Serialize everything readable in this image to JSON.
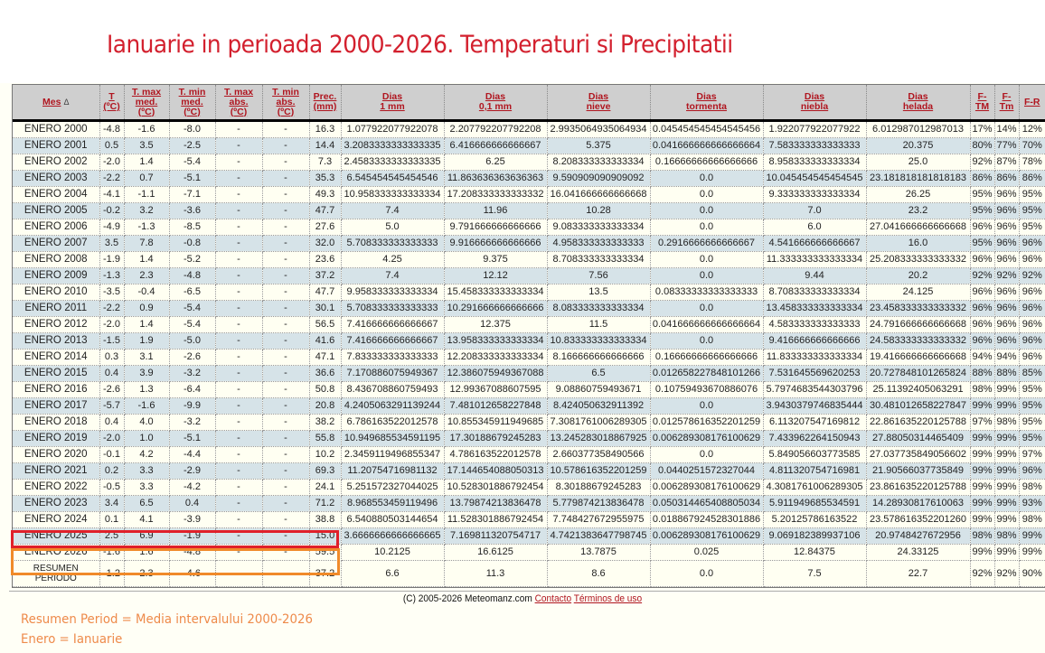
{
  "page_title": "Ianuarie in perioada 2000-2026. Temperaturi si Precipitatii",
  "table": {
    "columns": [
      {
        "key": "mes",
        "label": "Mes",
        "sort": "Δ"
      },
      {
        "key": "t",
        "label": "T (ºC)"
      },
      {
        "key": "tmaxmed",
        "label": "T. max med. (ºC)"
      },
      {
        "key": "tminmed",
        "label": "T. min med. (ºC)"
      },
      {
        "key": "tmaxabs",
        "label": "T. max abs. (ºC)"
      },
      {
        "key": "tminabs",
        "label": "T. min abs. (ºC)"
      },
      {
        "key": "prec",
        "label": "Prec. (mm)"
      },
      {
        "key": "d1mm",
        "label": "Dias 1 mm"
      },
      {
        "key": "d01mm",
        "label": "Dias 0,1 mm"
      },
      {
        "key": "dnieve",
        "label": "Dias nieve"
      },
      {
        "key": "dtormenta",
        "label": "Dias tormenta"
      },
      {
        "key": "dniebla",
        "label": "Dias niebla"
      },
      {
        "key": "dhelada",
        "label": "Dias helada"
      },
      {
        "key": "ftm",
        "label": "F-TM"
      },
      {
        "key": "ftmin",
        "label": "F-Tm"
      },
      {
        "key": "fr",
        "label": "F-R"
      }
    ],
    "header_lines": {
      "mes": [
        "Mes"
      ],
      "t": [
        "T",
        "(ºC)"
      ],
      "tmaxmed": [
        "T. max",
        "med.",
        "(ºC)"
      ],
      "tminmed": [
        "T. min",
        "med.",
        "(ºC)"
      ],
      "tmaxabs": [
        "T. max",
        "abs.",
        "(ºC)"
      ],
      "tminabs": [
        "T. min",
        "abs.",
        "(ºC)"
      ],
      "prec": [
        "Prec.",
        "(mm)"
      ],
      "d1mm": [
        "Dias",
        "1 mm"
      ],
      "d01mm": [
        "Dias",
        "0,1 mm"
      ],
      "dnieve": [
        "Dias",
        "nieve"
      ],
      "dtormenta": [
        "Dias",
        "tormenta"
      ],
      "dniebla": [
        "Dias",
        "niebla"
      ],
      "dhelada": [
        "Dias",
        "helada"
      ],
      "ftm": [
        "F-",
        "TM"
      ],
      "ftmin": [
        "F-",
        "Tm"
      ],
      "fr": [
        "F-R"
      ]
    },
    "rows": [
      [
        "ENERO 2000",
        "-4.8",
        "-1.6",
        "-8.0",
        "-",
        "-",
        "16.3",
        "1.077922077922078",
        "2.207792207792208",
        "2.9935064935064934",
        "0.045454545454545456",
        "1.922077922077922",
        "6.012987012987013",
        "17%",
        "14%",
        "12%"
      ],
      [
        "ENERO 2001",
        "0.5",
        "3.5",
        "-2.5",
        "-",
        "-",
        "14.4",
        "3.2083333333333335",
        "6.416666666666667",
        "5.375",
        "0.041666666666666664",
        "7.583333333333333",
        "20.375",
        "80%",
        "77%",
        "70%"
      ],
      [
        "ENERO 2002",
        "-2.0",
        "1.4",
        "-5.4",
        "-",
        "-",
        "7.3",
        "2.4583333333333335",
        "6.25",
        "8.208333333333334",
        "0.16666666666666666",
        "8.958333333333334",
        "25.0",
        "92%",
        "87%",
        "78%"
      ],
      [
        "ENERO 2003",
        "-2.2",
        "0.7",
        "-5.1",
        "-",
        "-",
        "35.3",
        "6.545454545454546",
        "11.863636363636363",
        "9.590909090909092",
        "0.0",
        "10.045454545454545",
        "23.181818181818183",
        "86%",
        "86%",
        "86%"
      ],
      [
        "ENERO 2004",
        "-4.1",
        "-1.1",
        "-7.1",
        "-",
        "-",
        "49.3",
        "10.958333333333334",
        "17.208333333333332",
        "16.041666666666668",
        "0.0",
        "9.333333333333334",
        "26.25",
        "95%",
        "96%",
        "95%"
      ],
      [
        "ENERO 2005",
        "-0.2",
        "3.2",
        "-3.6",
        "-",
        "-",
        "47.7",
        "7.4",
        "11.96",
        "10.28",
        "0.0",
        "7.0",
        "23.2",
        "95%",
        "96%",
        "95%"
      ],
      [
        "ENERO 2006",
        "-4.9",
        "-1.3",
        "-8.5",
        "-",
        "-",
        "27.6",
        "5.0",
        "9.791666666666666",
        "9.083333333333334",
        "0.0",
        "6.0",
        "27.041666666666668",
        "96%",
        "96%",
        "95%"
      ],
      [
        "ENERO 2007",
        "3.5",
        "7.8",
        "-0.8",
        "-",
        "-",
        "32.0",
        "5.708333333333333",
        "9.916666666666666",
        "4.958333333333333",
        "0.2916666666666667",
        "4.541666666666667",
        "16.0",
        "95%",
        "96%",
        "96%"
      ],
      [
        "ENERO 2008",
        "-1.9",
        "1.4",
        "-5.2",
        "-",
        "-",
        "23.6",
        "4.25",
        "9.375",
        "8.708333333333334",
        "0.0",
        "11.333333333333334",
        "25.208333333333332",
        "96%",
        "96%",
        "96%"
      ],
      [
        "ENERO 2009",
        "-1.3",
        "2.3",
        "-4.8",
        "-",
        "-",
        "37.2",
        "7.4",
        "12.12",
        "7.56",
        "0.0",
        "9.44",
        "20.2",
        "92%",
        "92%",
        "92%"
      ],
      [
        "ENERO 2010",
        "-3.5",
        "-0.4",
        "-6.5",
        "-",
        "-",
        "47.7",
        "9.958333333333334",
        "15.458333333333334",
        "13.5",
        "0.08333333333333333",
        "8.708333333333334",
        "24.125",
        "96%",
        "96%",
        "96%"
      ],
      [
        "ENERO 2011",
        "-2.2",
        "0.9",
        "-5.4",
        "-",
        "-",
        "30.1",
        "5.708333333333333",
        "10.291666666666666",
        "8.083333333333334",
        "0.0",
        "13.458333333333334",
        "23.458333333333332",
        "96%",
        "96%",
        "96%"
      ],
      [
        "ENERO 2012",
        "-2.0",
        "1.4",
        "-5.4",
        "-",
        "-",
        "56.5",
        "7.416666666666667",
        "12.375",
        "11.5",
        "0.041666666666666664",
        "4.583333333333333",
        "24.791666666666668",
        "96%",
        "96%",
        "96%"
      ],
      [
        "ENERO 2013",
        "-1.5",
        "1.9",
        "-5.0",
        "-",
        "-",
        "41.6",
        "7.416666666666667",
        "13.958333333333334",
        "10.833333333333334",
        "0.0",
        "9.416666666666666",
        "24.583333333333332",
        "96%",
        "96%",
        "96%"
      ],
      [
        "ENERO 2014",
        "0.3",
        "3.1",
        "-2.6",
        "-",
        "-",
        "47.1",
        "7.833333333333333",
        "12.208333333333334",
        "8.166666666666666",
        "0.16666666666666666",
        "11.833333333333334",
        "19.416666666666668",
        "94%",
        "94%",
        "96%"
      ],
      [
        "ENERO 2015",
        "0.4",
        "3.9",
        "-3.2",
        "-",
        "-",
        "36.6",
        "7.170886075949367",
        "12.386075949367088",
        "6.5",
        "0.012658227848101266",
        "7.531645569620253",
        "20.727848101265824",
        "88%",
        "88%",
        "85%"
      ],
      [
        "ENERO 2016",
        "-2.6",
        "1.3",
        "-6.4",
        "-",
        "-",
        "50.8",
        "8.436708860759493",
        "12.99367088607595",
        "9.08860759493671",
        "0.10759493670886076",
        "5.7974683544303796",
        "25.11392405063291",
        "98%",
        "99%",
        "95%"
      ],
      [
        "ENERO 2017",
        "-5.7",
        "-1.6",
        "-9.9",
        "-",
        "-",
        "20.8",
        "4.2405063291139244",
        "7.481012658227848",
        "8.424050632911392",
        "0.0",
        "3.9430379746835444",
        "30.481012658227847",
        "99%",
        "99%",
        "95%"
      ],
      [
        "ENERO 2018",
        "0.4",
        "4.0",
        "-3.2",
        "-",
        "-",
        "38.2",
        "6.786163522012578",
        "10.855345911949685",
        "7.3081761006289305",
        "0.012578616352201259",
        "6.113207547169812",
        "22.861635220125788",
        "97%",
        "98%",
        "95%"
      ],
      [
        "ENERO 2019",
        "-2.0",
        "1.0",
        "-5.1",
        "-",
        "-",
        "55.8",
        "10.949685534591195",
        "17.30188679245283",
        "13.245283018867925",
        "0.006289308176100629",
        "7.433962264150943",
        "27.88050314465409",
        "99%",
        "99%",
        "95%"
      ],
      [
        "ENERO 2020",
        "-0.1",
        "4.2",
        "-4.4",
        "-",
        "-",
        "10.2",
        "2.3459119496855347",
        "4.786163522012578",
        "2.660377358490566",
        "0.0",
        "5.849056603773585",
        "27.037735849056602",
        "99%",
        "99%",
        "97%"
      ],
      [
        "ENERO 2021",
        "0.2",
        "3.3",
        "-2.9",
        "-",
        "-",
        "69.3",
        "11.20754716981132",
        "17.144654088050313",
        "10.578616352201259",
        "0.0440251572327044",
        "4.811320754716981",
        "21.90566037735849",
        "99%",
        "99%",
        "96%"
      ],
      [
        "ENERO 2022",
        "-0.5",
        "3.3",
        "-4.2",
        "-",
        "-",
        "24.1",
        "5.251572327044025",
        "10.528301886792454",
        "8.30188679245283",
        "0.006289308176100629",
        "4.3081761006289305",
        "23.861635220125788",
        "99%",
        "99%",
        "98%"
      ],
      [
        "ENERO 2023",
        "3.4",
        "6.5",
        "0.4",
        "-",
        "-",
        "71.2",
        "8.968553459119496",
        "13.79874213836478",
        "5.779874213836478",
        "0.050314465408805034",
        "5.911949685534591",
        "14.28930817610063",
        "99%",
        "99%",
        "93%"
      ],
      [
        "ENERO 2024",
        "0.1",
        "4.1",
        "-3.9",
        "-",
        "-",
        "38.8",
        "6.540880503144654",
        "11.528301886792454",
        "7.748427672955975",
        "0.018867924528301886",
        "5.20125786163522",
        "23.578616352201260",
        "99%",
        "99%",
        "98%"
      ],
      [
        "ENERO 2025",
        "2.5",
        "6.9",
        "-1.9",
        "-",
        "-",
        "15.0",
        "3.6666666666666665",
        "7.169811320754717",
        "4.7421383647798745",
        "0.006289308176100629",
        "9.069182389937106",
        "20.9748427672956",
        "98%",
        "98%",
        "99%"
      ],
      [
        "ENERO 2026",
        "-1.6",
        "1.6",
        "-4.8",
        "-",
        "-",
        "59.5",
        "10.2125",
        "16.6125",
        "13.7875",
        "0.025",
        "12.84375",
        "24.33125",
        "99%",
        "99%",
        "99%"
      ]
    ],
    "summary": [
      "RESUMEN PERIODO",
      "-1.2",
      "2.3",
      "-4.6",
      "-",
      "-",
      "37.2",
      "6.6",
      "11.3",
      "8.6",
      "0.0",
      "7.5",
      "22.7",
      "92%",
      "92%",
      "90%"
    ]
  },
  "footer": {
    "copyright": "(C) 2005-2026 Meteomanz.com",
    "contact_link": "Contacto",
    "terms_link": "Términos de uso"
  },
  "notes": {
    "line1": "Resumen Period = Media intervalului 2000-2026",
    "line2": "Enero = Ianuarie"
  },
  "colors": {
    "title": "#d3202e",
    "header_link": "#b0151f",
    "row_alt": "#d6e3e8",
    "row_base": "#fffff2",
    "highlight_2026": "#e0202a",
    "highlight_summary": "#f08a2a",
    "note_text": "#ee8a4a"
  }
}
